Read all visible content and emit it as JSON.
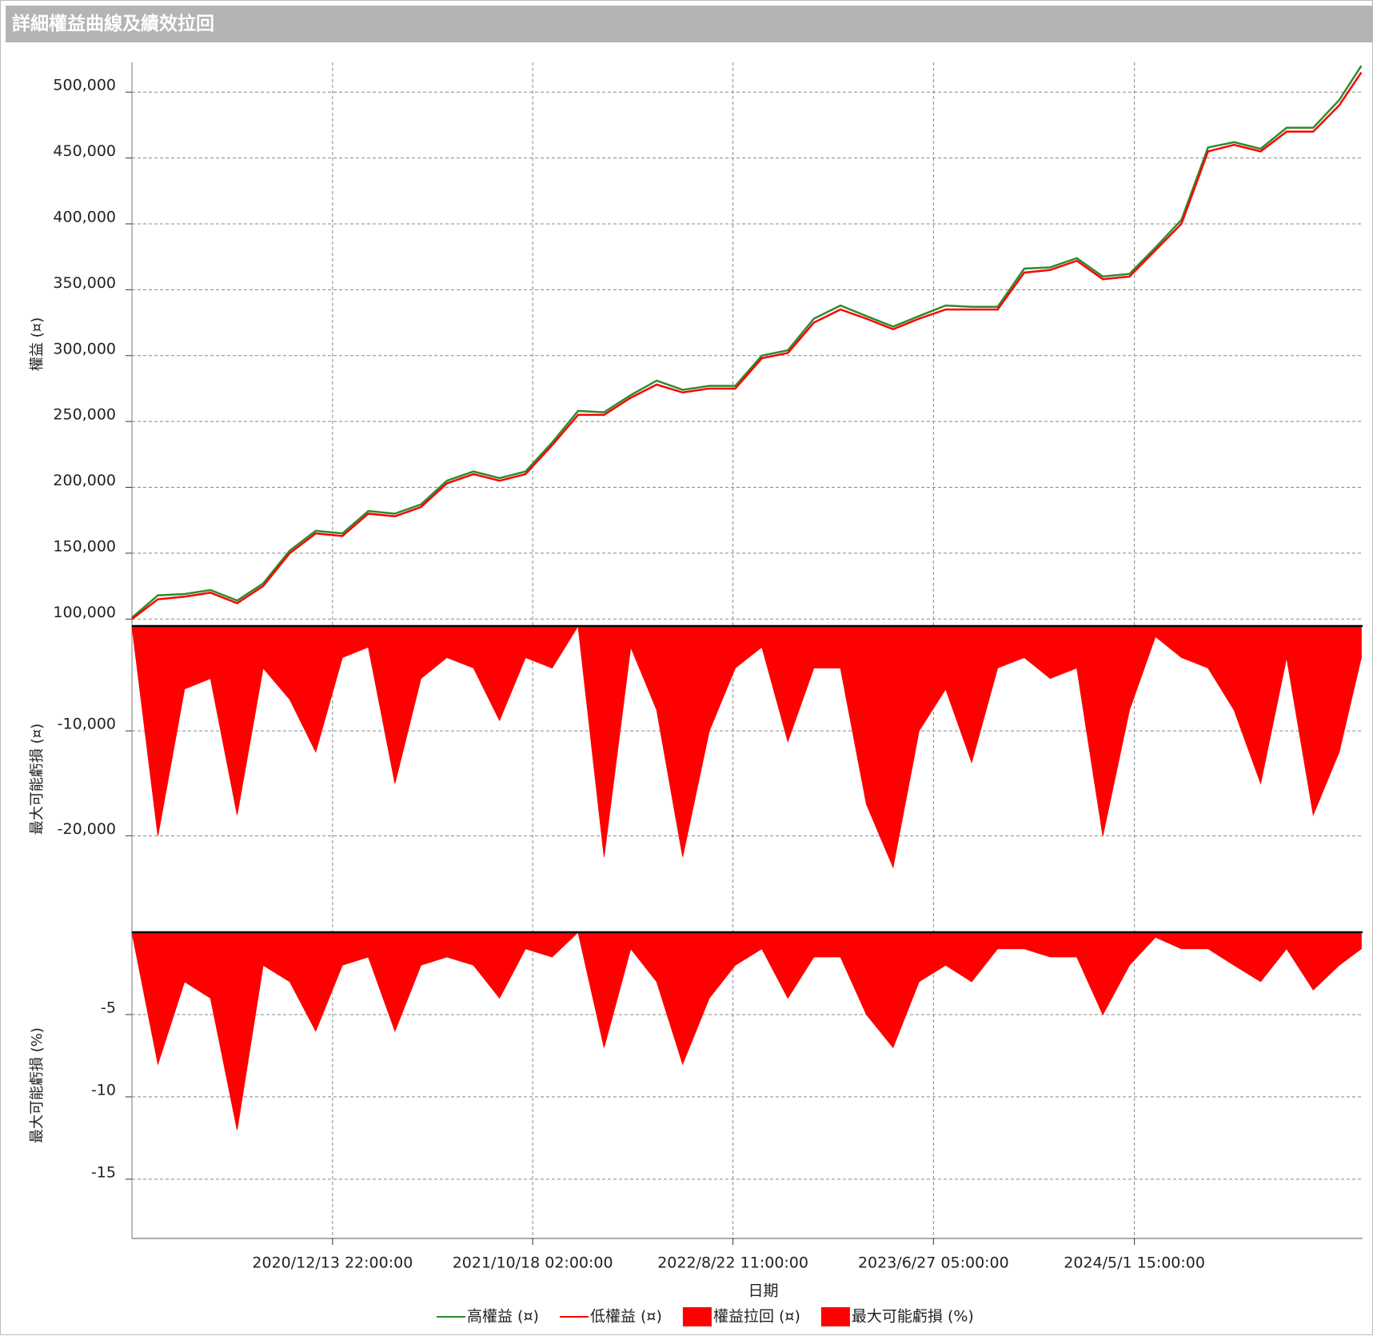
{
  "chart_data": {
    "type": "line",
    "title": "詳細權益曲線及績效拉回",
    "xlabel": "日期",
    "x": [
      "2020/2/9",
      "2020/3/20",
      "2020/4/30",
      "2020/6/9",
      "2020/7/20",
      "2020/8/29",
      "2020/10/9",
      "2020/11/18",
      "2020/12/29",
      "2021/2/7",
      "2021/3/20",
      "2021/4/29",
      "2021/6/8",
      "2021/7/19",
      "2021/8/28",
      "2021/10/7",
      "2021/11/17",
      "2021/12/27",
      "2022/2/5",
      "2022/3/18",
      "2022/4/27",
      "2022/6/6",
      "2022/7/17",
      "2022/8/26",
      "2022/10/6",
      "2022/11/15",
      "2022/12/25",
      "2023/2/4",
      "2023/3/16",
      "2023/4/26",
      "2023/6/5",
      "2023/7/16",
      "2023/8/25",
      "2023/10/4",
      "2023/11/14",
      "2023/12/24",
      "2024/2/3",
      "2024/3/14",
      "2024/4/24",
      "2024/6/3",
      "2024/7/13",
      "2024/8/23",
      "2024/10/2",
      "2024/11/12",
      "2024/12/22",
      "2025/2/1",
      "2025/3/13",
      "2025/4/16"
    ],
    "xlim": [
      "2020/2/9",
      "2025/4/18"
    ],
    "xticks": [
      "2020/12/13 22:00:00",
      "2021/10/18 02:00:00",
      "2022/8/22 11:00:00",
      "2023/6/27 05:00:00",
      "2024/5/1 15:00:00"
    ],
    "grid": true,
    "panels": [
      {
        "type": "line",
        "ylabel": "權益 (¤)",
        "ylim": [
          94700,
          522600
        ],
        "yticks": [
          {
            "value": 100000,
            "label": "100,000"
          },
          {
            "value": 150000,
            "label": "150,000"
          },
          {
            "value": 200000,
            "label": "200,000"
          },
          {
            "value": 250000,
            "label": "250,000"
          },
          {
            "value": 300000,
            "label": "300,000"
          },
          {
            "value": 350000,
            "label": "350,000"
          },
          {
            "value": 400000,
            "label": "400,000"
          },
          {
            "value": 450000,
            "label": "450,000"
          },
          {
            "value": 500000,
            "label": "500,000"
          }
        ],
        "series": [
          {
            "name": "高權益 (¤)",
            "color": "#2e8b2e",
            "values": [
              101000,
              118000,
              119000,
              122000,
              114000,
              127000,
              152000,
              167000,
              165000,
              182000,
              180000,
              187000,
              205000,
              212000,
              207000,
              212000,
              234000,
              258000,
              257000,
              270000,
              281000,
              274000,
              277000,
              277000,
              300000,
              304000,
              328000,
              338000,
              330000,
              322000,
              330000,
              338000,
              337000,
              337000,
              366000,
              367000,
              374000,
              360000,
              362000,
              382000,
              403000,
              458000,
              462000,
              457000,
              473000,
              473000,
              494000,
              520000
            ]
          },
          {
            "name": "低權益 (¤)",
            "color": "#ff0000",
            "values": [
              100000,
              115000,
              117000,
              120000,
              112000,
              125000,
              150000,
              165000,
              163000,
              180000,
              178000,
              185000,
              203000,
              210000,
              205000,
              210000,
              232000,
              255000,
              255000,
              268000,
              278000,
              272000,
              275000,
              275000,
              298000,
              302000,
              325000,
              335000,
              328000,
              320000,
              328000,
              335000,
              335000,
              335000,
              363000,
              365000,
              372000,
              358000,
              360000,
              380000,
              400000,
              455000,
              460000,
              455000,
              470000,
              470000,
              490000,
              515000
            ]
          }
        ]
      },
      {
        "type": "area",
        "ylabel": "最大可能虧損 (¤)",
        "ylim": [
          -29200,
          0
        ],
        "yticks": [
          {
            "value": -10000,
            "label": "-10,000"
          },
          {
            "value": -20000,
            "label": "-20,000"
          }
        ],
        "series": [
          {
            "name": "權益拉回 (¤)",
            "color": "#ff0000",
            "values": [
              0,
              -20000,
              -6000,
              -5000,
              -18000,
              -4000,
              -7000,
              -12000,
              -3000,
              -2000,
              -15000,
              -5000,
              -3000,
              -4000,
              -9000,
              -3000,
              -4000,
              0,
              -22000,
              -2000,
              -8000,
              -22000,
              -10000,
              -4000,
              -2000,
              -11000,
              -4000,
              -4000,
              -17000,
              -23000,
              -10000,
              -6000,
              -13000,
              -4000,
              -3000,
              -5000,
              -4000,
              -20000,
              -8000,
              -1000,
              -3000,
              -4000,
              -8000,
              -15000,
              -3000,
              -18000,
              -12000,
              -3000
            ]
          }
        ]
      },
      {
        "type": "area",
        "ylabel": "最大可能虧損 (%)",
        "ylim": [
          -18.6,
          0
        ],
        "yticks": [
          -5,
          -10,
          -15
        ],
        "series": [
          {
            "name": "最大可能虧損 (%)",
            "color": "#ff0000",
            "values": [
              0,
              -8,
              -3,
              -4,
              -12,
              -2,
              -3,
              -6,
              -2,
              -1.5,
              -6,
              -2,
              -1.5,
              -2,
              -4,
              -1,
              -1.5,
              0,
              -7,
              -1,
              -3,
              -8,
              -4,
              -2,
              -1,
              -4,
              -1.5,
              -1.5,
              -5,
              -7,
              -3,
              -2,
              -3,
              -1,
              -1,
              -1.5,
              -1.5,
              -5,
              -2,
              -0.3,
              -1,
              -1,
              -2,
              -3,
              -1,
              -3.5,
              -2,
              -1
            ]
          }
        ]
      }
    ]
  }
}
